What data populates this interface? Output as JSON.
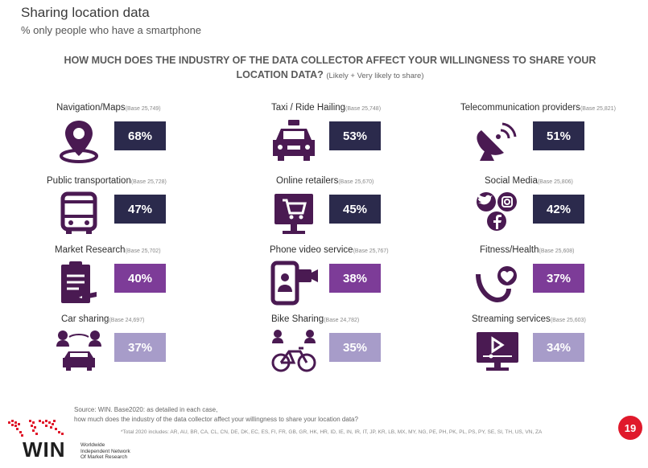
{
  "header": {
    "title": "Sharing location data",
    "subtitle": "% only people who have a smartphone"
  },
  "question": {
    "line1": "HOW MUCH DOES THE INDUSTRY OF THE DATA COLLECTOR AFFECT YOUR WILLINGNESS TO SHARE YOUR",
    "line2": "LOCATION DATA?",
    "note": "(Likely + Very likely to share)"
  },
  "chart_data": {
    "type": "table",
    "title": "HOW MUCH DOES THE INDUSTRY OF THE DATA COLLECTOR AFFECT YOUR WILLINGNESS TO SHARE YOUR LOCATION DATA?",
    "unit": "%",
    "items": [
      {
        "label": "Navigation/Maps",
        "base": "(Base 25,749)",
        "value": 68,
        "value_label": "68%",
        "color": "#2b2a4c",
        "icon": "location-pin-icon"
      },
      {
        "label": "Taxi / Ride Hailing",
        "base": "(Base 25,748)",
        "value": 53,
        "value_label": "53%",
        "color": "#2b2a4c",
        "icon": "taxi-icon"
      },
      {
        "label": "Telecommunication providers",
        "base": "(Base 25,821)",
        "value": 51,
        "value_label": "51%",
        "color": "#2b2a4c",
        "icon": "satellite-dish-icon"
      },
      {
        "label": "Public transportation",
        "base": "(Base 25,728)",
        "value": 47,
        "value_label": "47%",
        "color": "#2b2a4c",
        "icon": "bus-icon"
      },
      {
        "label": "Online retailers",
        "base": "(Base 25,670)",
        "value": 45,
        "value_label": "45%",
        "color": "#2b2a4c",
        "icon": "shopping-cart-screen-icon"
      },
      {
        "label": "Social Media",
        "base": "(Base 25,806)",
        "value": 42,
        "value_label": "42%",
        "color": "#2b2a4c",
        "icon": "social-media-icon"
      },
      {
        "label": "Market Research",
        "base": "(Base 25,702)",
        "value": 40,
        "value_label": "40%",
        "color": "#7d3c98",
        "icon": "clipboard-icon"
      },
      {
        "label": "Phone video service",
        "base": "(Base 25,767)",
        "value": 38,
        "value_label": "38%",
        "color": "#7d3c98",
        "icon": "phone-video-icon"
      },
      {
        "label": "Fitness/Health",
        "base": "(Base 25,608)",
        "value": 37,
        "value_label": "37%",
        "color": "#7d3c98",
        "icon": "heart-pin-icon"
      },
      {
        "label": "Car sharing",
        "base": "(Base 24,697)",
        "value": 37,
        "value_label": "37%",
        "color": "#a79cc9",
        "icon": "car-sharing-icon"
      },
      {
        "label": "Bike Sharing",
        "base": "(Base 24,782)",
        "value": 35,
        "value_label": "35%",
        "color": "#a79cc9",
        "icon": "bike-sharing-icon"
      },
      {
        "label": "Streaming services",
        "base": "(Base 25,603)",
        "value": 34,
        "value_label": "34%",
        "color": "#a79cc9",
        "icon": "streaming-monitor-icon"
      }
    ]
  },
  "footer": {
    "source_line1": "Source:  WIN.  Base2020:  as detailed  in  each case,",
    "source_line2": "how much does the industry of the data collector  affect your willingness to share your location  data?",
    "footnote": "*Total 2020 includes: AR, AU, BR, CA, CL, CN, DE, DK, EC, ES, FI, FR, GB, GR, HK, HR, ID, IE, IN, IR, IT, JP, KR, LB, MX, MY, NG, PE, PH, PK, PL, PS, PY, SE, SI, TH, US, VN, ZA",
    "page_number": "19",
    "logo_text": "WIN",
    "logo_sub1": "Worldwide",
    "logo_sub2": "Independent Network",
    "logo_sub3": "Of Market Research",
    "logo_color": "#e0192b",
    "icon_color": "#4a1a52"
  }
}
